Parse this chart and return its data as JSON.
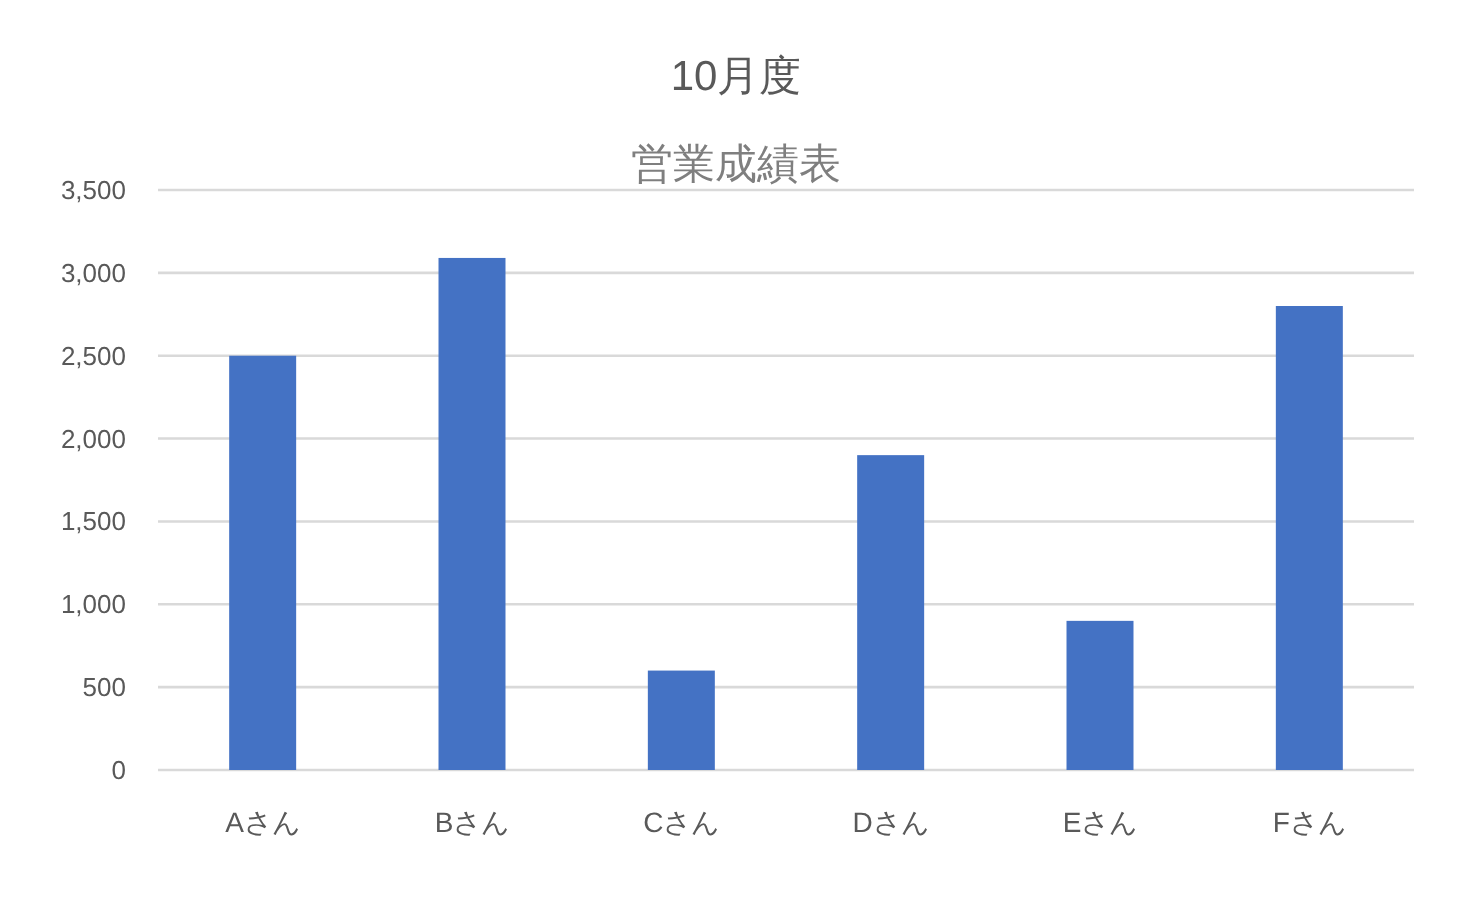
{
  "chart_data": {
    "type": "bar",
    "title": "10月度",
    "subtitle": "営業成績表",
    "categories": [
      "Aさん",
      "Bさん",
      "Cさん",
      "Dさん",
      "Eさん",
      "Fさん"
    ],
    "series": [
      {
        "color": "#4472c4",
        "values": [
          2500,
          3090,
          600,
          1900,
          900,
          2800
        ]
      }
    ],
    "ylim": [
      0,
      3500
    ],
    "yticks": [
      0,
      500,
      {
        "value": 1000,
        "label": "1,000"
      },
      {
        "value": 1500,
        "label": "1,500"
      },
      {
        "value": 2000,
        "label": "2,000"
      },
      {
        "value": 2500,
        "label": "2,500"
      },
      {
        "value": 3000,
        "label": "3,000"
      },
      {
        "value": 3500,
        "label": "3,500"
      }
    ],
    "grid": "y"
  }
}
